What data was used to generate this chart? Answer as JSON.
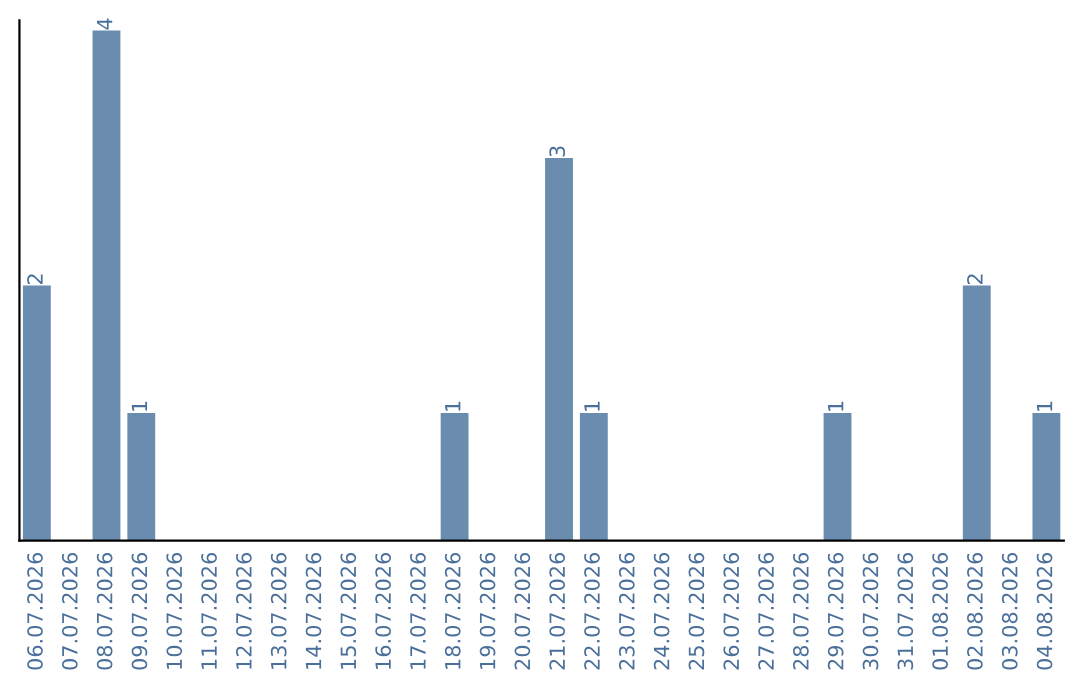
{
  "chart_data": {
    "type": "bar",
    "categories": [
      "06.07.2026",
      "07.07.2026",
      "08.07.2026",
      "09.07.2026",
      "10.07.2026",
      "11.07.2026",
      "12.07.2026",
      "13.07.2026",
      "14.07.2026",
      "15.07.2026",
      "16.07.2026",
      "17.07.2026",
      "18.07.2026",
      "19.07.2026",
      "20.07.2026",
      "21.07.2026",
      "22.07.2026",
      "23.07.2026",
      "24.07.2026",
      "25.07.2026",
      "26.07.2026",
      "27.07.2026",
      "28.07.2026",
      "29.07.2026",
      "30.07.2026",
      "31.07.2026",
      "01.08.2026",
      "02.08.2026",
      "03.08.2026",
      "04.08.2026"
    ],
    "values": [
      2,
      0,
      4,
      1,
      0,
      0,
      0,
      0,
      0,
      0,
      0,
      0,
      1,
      0,
      0,
      3,
      1,
      0,
      0,
      0,
      0,
      0,
      0,
      1,
      0,
      0,
      0,
      2,
      0,
      1
    ],
    "value_labels": [
      "2",
      null,
      "4",
      "1",
      null,
      null,
      null,
      null,
      null,
      null,
      null,
      null,
      "1",
      null,
      null,
      "3",
      "1",
      null,
      null,
      null,
      null,
      null,
      null,
      "1",
      null,
      null,
      null,
      "2",
      null,
      "1"
    ],
    "color": "#6a8caf",
    "tick_labels": "x",
    "grid": false,
    "legend": false
  }
}
